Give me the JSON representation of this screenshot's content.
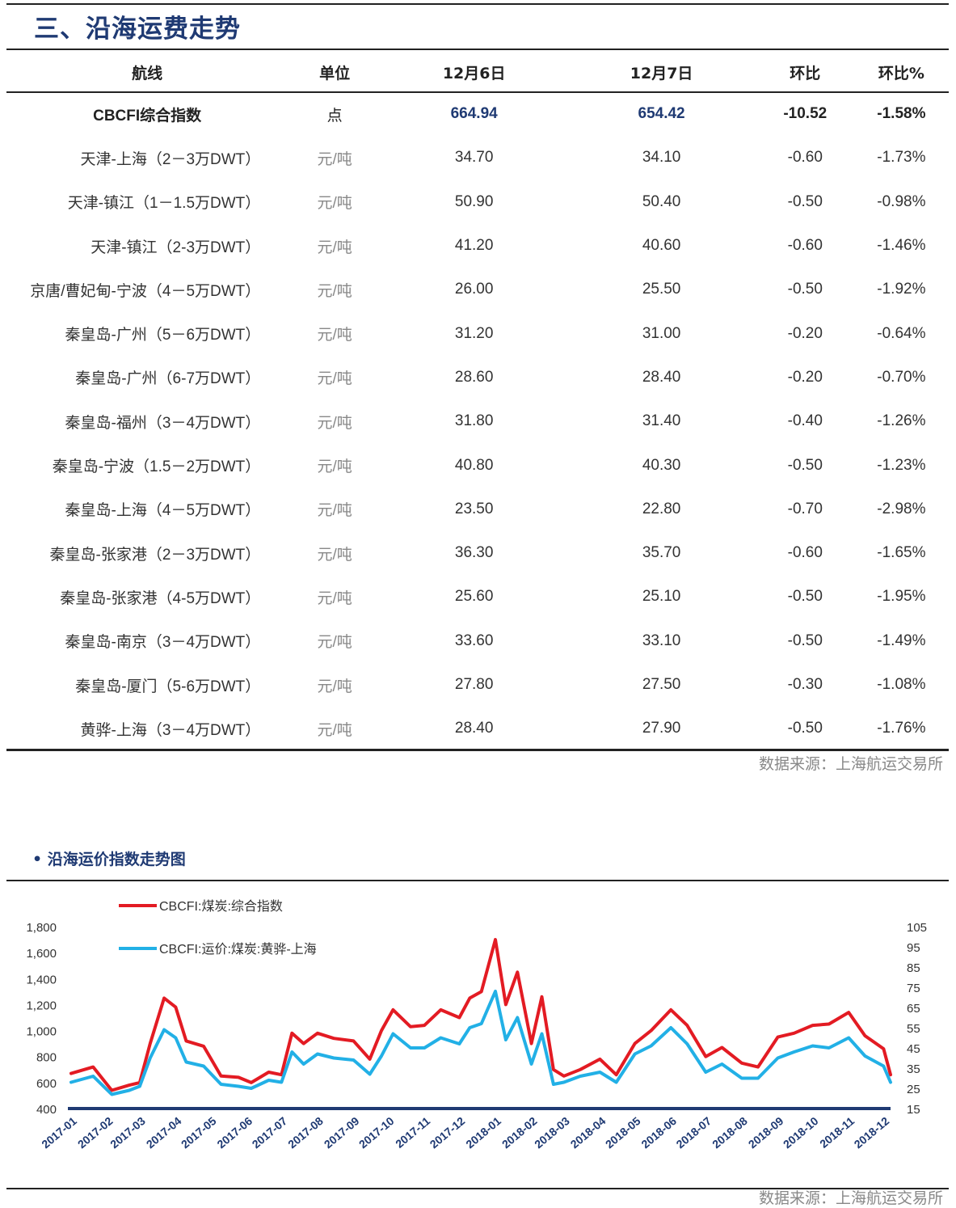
{
  "section_title": "三、沿海运费走势",
  "table": {
    "headers": [
      "航线",
      "单位",
      "12月6日",
      "12月7日",
      "环比",
      "环比%"
    ],
    "rows": [
      {
        "route": "CBCFI综合指数",
        "unit": "点",
        "d1": "664.94",
        "d2": "654.42",
        "chg": "-10.52",
        "pct": "-1.58%"
      },
      {
        "route": "天津-上海（2－3万DWT）",
        "unit": "元/吨",
        "d1": "34.70",
        "d2": "34.10",
        "chg": "-0.60",
        "pct": "-1.73%"
      },
      {
        "route": "天津-镇江（1－1.5万DWT）",
        "unit": "元/吨",
        "d1": "50.90",
        "d2": "50.40",
        "chg": "-0.50",
        "pct": "-0.98%"
      },
      {
        "route": "天津-镇江（2-3万DWT）",
        "unit": "元/吨",
        "d1": "41.20",
        "d2": "40.60",
        "chg": "-0.60",
        "pct": "-1.46%"
      },
      {
        "route": "京唐/曹妃甸-宁波（4－5万DWT）",
        "unit": "元/吨",
        "d1": "26.00",
        "d2": "25.50",
        "chg": "-0.50",
        "pct": "-1.92%"
      },
      {
        "route": "秦皇岛-广州（5－6万DWT）",
        "unit": "元/吨",
        "d1": "31.20",
        "d2": "31.00",
        "chg": "-0.20",
        "pct": "-0.64%"
      },
      {
        "route": "秦皇岛-广州（6-7万DWT）",
        "unit": "元/吨",
        "d1": "28.60",
        "d2": "28.40",
        "chg": "-0.20",
        "pct": "-0.70%"
      },
      {
        "route": "秦皇岛-福州（3－4万DWT）",
        "unit": "元/吨",
        "d1": "31.80",
        "d2": "31.40",
        "chg": "-0.40",
        "pct": "-1.26%"
      },
      {
        "route": "秦皇岛-宁波（1.5－2万DWT）",
        "unit": "元/吨",
        "d1": "40.80",
        "d2": "40.30",
        "chg": "-0.50",
        "pct": "-1.23%"
      },
      {
        "route": "秦皇岛-上海（4－5万DWT）",
        "unit": "元/吨",
        "d1": "23.50",
        "d2": "22.80",
        "chg": "-0.70",
        "pct": "-2.98%"
      },
      {
        "route": "秦皇岛-张家港（2－3万DWT）",
        "unit": "元/吨",
        "d1": "36.30",
        "d2": "35.70",
        "chg": "-0.60",
        "pct": "-1.65%"
      },
      {
        "route": "秦皇岛-张家港（4-5万DWT）",
        "unit": "元/吨",
        "d1": "25.60",
        "d2": "25.10",
        "chg": "-0.50",
        "pct": "-1.95%"
      },
      {
        "route": "秦皇岛-南京（3－4万DWT）",
        "unit": "元/吨",
        "d1": "33.60",
        "d2": "33.10",
        "chg": "-0.50",
        "pct": "-1.49%"
      },
      {
        "route": "秦皇岛-厦门（5-6万DWT）",
        "unit": "元/吨",
        "d1": "27.80",
        "d2": "27.50",
        "chg": "-0.30",
        "pct": "-1.08%"
      },
      {
        "route": "黄骅-上海（3－4万DWT）",
        "unit": "元/吨",
        "d1": "28.40",
        "d2": "27.90",
        "chg": "-0.50",
        "pct": "-1.76%"
      }
    ],
    "source": "数据来源：上海航运交易所"
  },
  "chart_section_title": "• 沿海运价指数走势图",
  "chart_source": "数据来源：上海航运交易所",
  "colors": {
    "red": "#e31b23",
    "blue": "#22b0e6",
    "navy": "#1f3a73",
    "baseline": "#1f3a73"
  },
  "chart_data": {
    "type": "line",
    "title": "",
    "xlabel": "",
    "ylabel": "",
    "ylim": [
      400,
      1800
    ],
    "y2lim": [
      15,
      105
    ],
    "y_ticks": [
      "400",
      "600",
      "800",
      "1,000",
      "1,200",
      "1,400",
      "1,600",
      "1,800"
    ],
    "y2_ticks": [
      "15",
      "25",
      "35",
      "45",
      "55",
      "65",
      "75",
      "85",
      "95",
      "105"
    ],
    "x_ticks": [
      "2017-01",
      "2017-02",
      "2017-03",
      "2017-04",
      "2017-05",
      "2017-06",
      "2017-07",
      "2017-08",
      "2017-09",
      "2017-10",
      "2017-11",
      "2017-12",
      "2018-01",
      "2018-02",
      "2018-03",
      "2018-04",
      "2018-05",
      "2018-06",
      "2018-07",
      "2018-08",
      "2018-09",
      "2018-10",
      "2018-11",
      "2018-12"
    ],
    "legend_position": "top-left",
    "grid": false,
    "series": [
      {
        "name": "CBCFI:煤炭:综合指数",
        "axis": "left",
        "color": "#e31b23",
        "x": [
          "2017-01-01",
          "2017-01-20",
          "2017-02-05",
          "2017-02-20",
          "2017-03-01",
          "2017-03-10",
          "2017-03-22",
          "2017-04-01",
          "2017-04-10",
          "2017-04-25",
          "2017-05-10",
          "2017-05-25",
          "2017-06-05",
          "2017-06-20",
          "2017-07-01",
          "2017-07-10",
          "2017-07-20",
          "2017-08-01",
          "2017-08-15",
          "2017-09-01",
          "2017-09-15",
          "2017-09-25",
          "2017-10-05",
          "2017-10-20",
          "2017-11-01",
          "2017-11-15",
          "2017-12-01",
          "2017-12-10",
          "2017-12-20",
          "2018-01-01",
          "2018-01-10",
          "2018-01-20",
          "2018-02-01",
          "2018-02-10",
          "2018-02-20",
          "2018-03-01",
          "2018-03-15",
          "2018-04-01",
          "2018-04-15",
          "2018-05-01",
          "2018-05-15",
          "2018-06-01",
          "2018-06-15",
          "2018-07-01",
          "2018-07-15",
          "2018-08-01",
          "2018-08-15",
          "2018-09-01",
          "2018-09-15",
          "2018-10-01",
          "2018-10-15",
          "2018-11-01",
          "2018-11-15",
          "2018-12-01",
          "2018-12-07"
        ],
        "values": [
          670,
          720,
          540,
          580,
          600,
          900,
          1250,
          1180,
          920,
          880,
          650,
          640,
          600,
          680,
          660,
          980,
          900,
          980,
          940,
          920,
          780,
          1000,
          1160,
          1030,
          1040,
          1160,
          1100,
          1250,
          1300,
          1700,
          1200,
          1450,
          900,
          1260,
          700,
          650,
          700,
          780,
          660,
          900,
          1000,
          1160,
          1040,
          800,
          870,
          750,
          720,
          950,
          980,
          1040,
          1050,
          1140,
          960,
          860,
          660
        ]
      },
      {
        "name": "CBCFI:运价:煤炭:黄骅-上海",
        "axis": "right",
        "color": "#22b0e6",
        "x": [
          "2017-01-01",
          "2017-01-20",
          "2017-02-05",
          "2017-02-20",
          "2017-03-01",
          "2017-03-10",
          "2017-03-22",
          "2017-04-01",
          "2017-04-10",
          "2017-04-25",
          "2017-05-10",
          "2017-05-25",
          "2017-06-05",
          "2017-06-20",
          "2017-07-01",
          "2017-07-10",
          "2017-07-20",
          "2017-08-01",
          "2017-08-15",
          "2017-09-01",
          "2017-09-15",
          "2017-09-25",
          "2017-10-05",
          "2017-10-20",
          "2017-11-01",
          "2017-11-15",
          "2017-12-01",
          "2017-12-10",
          "2017-12-20",
          "2018-01-01",
          "2018-01-10",
          "2018-01-20",
          "2018-02-01",
          "2018-02-10",
          "2018-02-20",
          "2018-03-01",
          "2018-03-15",
          "2018-04-01",
          "2018-04-15",
          "2018-05-01",
          "2018-05-15",
          "2018-06-01",
          "2018-06-15",
          "2018-07-01",
          "2018-07-15",
          "2018-08-01",
          "2018-08-15",
          "2018-09-01",
          "2018-09-15",
          "2018-10-01",
          "2018-10-15",
          "2018-11-01",
          "2018-11-15",
          "2018-12-01",
          "2018-12-07"
        ],
        "values": [
          28,
          31,
          22,
          24,
          26,
          40,
          54,
          50,
          38,
          36,
          27,
          26,
          25,
          29,
          28,
          43,
          37,
          42,
          40,
          39,
          32,
          41,
          52,
          45,
          45,
          50,
          47,
          55,
          57,
          73,
          49,
          60,
          37,
          52,
          27,
          28,
          31,
          33,
          28,
          42,
          46,
          55,
          47,
          33,
          37,
          30,
          30,
          40,
          43,
          46,
          45,
          50,
          41,
          36,
          28
        ]
      }
    ]
  }
}
